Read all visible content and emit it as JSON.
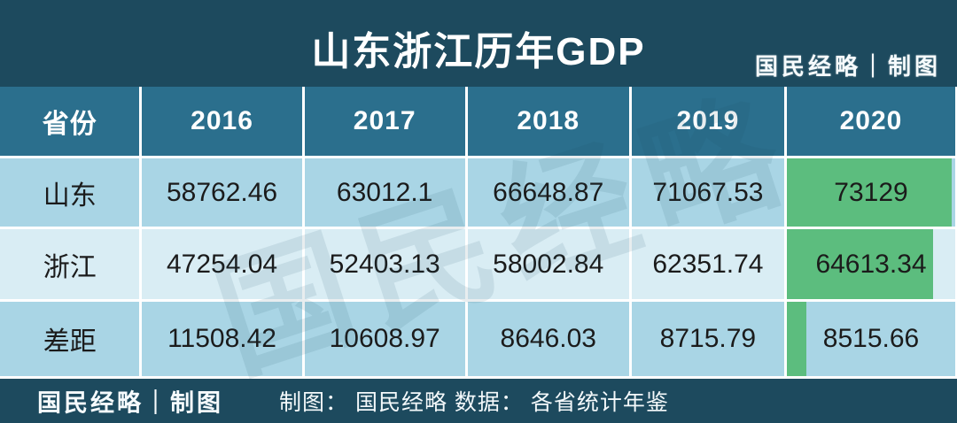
{
  "title": "山东浙江历年GDP",
  "credit_top_right": "国民经略｜制图",
  "watermark": "国民经略",
  "footer": {
    "left_credit": "国民经略｜制图",
    "source_line": "制图： 国民经略 数据： 各省统计年鉴"
  },
  "colors": {
    "dark_bar": "#1d4a5e",
    "header_teal": "#2b6f8d",
    "row_light_blue": "#a9d5e5",
    "row_lighter_blue": "#d9edf4",
    "databar_green": "#5cbd7e",
    "cell_text": "#1b1b1b",
    "white": "#ffffff"
  },
  "chart_data": {
    "type": "table",
    "title": "山东浙江历年GDP",
    "columns": [
      "省份",
      "2016",
      "2017",
      "2018",
      "2019",
      "2020"
    ],
    "rows": [
      {
        "label": "山东",
        "values": [
          "58762.46",
          "63012.1",
          "66648.87",
          "71067.53",
          "73129"
        ]
      },
      {
        "label": "浙江",
        "values": [
          "47254.04",
          "52403.13",
          "58002.84",
          "62351.74",
          "64613.34"
        ]
      },
      {
        "label": "差距",
        "values": [
          "11508.42",
          "10608.97",
          "8646.03",
          "8715.79",
          "8515.66"
        ]
      }
    ],
    "databar_column": "2020",
    "databar_max": 73129,
    "databar_values": [
      73129,
      64613.34,
      8515.66
    ],
    "notes": "2020 column cells contain green proportional data bars (Excel-style), scaled to max value 73129"
  }
}
